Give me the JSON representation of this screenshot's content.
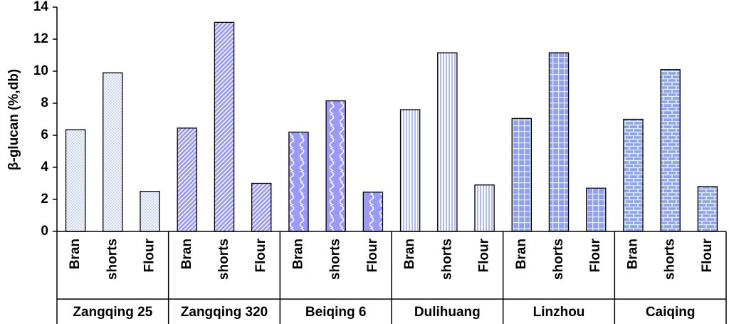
{
  "chart_data": {
    "type": "bar",
    "y_label": "β-glucan (%,db)",
    "ylim": [
      0,
      14
    ],
    "yticks": [
      0,
      2,
      4,
      6,
      8,
      10,
      12,
      14
    ],
    "groups": [
      {
        "name": "Zangqing 25",
        "categories": [
          "Bran",
          "shorts",
          "Flour"
        ],
        "values": [
          6.35,
          9.9,
          2.5
        ],
        "color": "#c4d0f4",
        "pattern": "crosshatch"
      },
      {
        "name": "Zangqing 320",
        "categories": [
          "Bran",
          "shorts",
          "Flour"
        ],
        "values": [
          6.45,
          13.05,
          3.0
        ],
        "color": "#9999ff",
        "pattern": "diagonal"
      },
      {
        "name": "Beiqing 6",
        "categories": [
          "Bran",
          "shorts",
          "Flour"
        ],
        "values": [
          6.2,
          8.15,
          2.45
        ],
        "color": "#9999ff",
        "pattern": "wave"
      },
      {
        "name": "Dulihuang",
        "categories": [
          "Bran",
          "shorts",
          "Flour"
        ],
        "values": [
          7.6,
          11.15,
          2.9
        ],
        "color": "#b0b8ff",
        "pattern": "vertical"
      },
      {
        "name": "Linzhou",
        "categories": [
          "Bran",
          "shorts",
          "Flour"
        ],
        "values": [
          7.05,
          11.15,
          2.7
        ],
        "color": "#9999ff",
        "pattern": "grid"
      },
      {
        "name": "Caiqing",
        "categories": [
          "Bran",
          "shorts",
          "Flour"
        ],
        "values": [
          7.0,
          10.1,
          2.8
        ],
        "color": "#9999ff",
        "pattern": "brick"
      }
    ]
  }
}
